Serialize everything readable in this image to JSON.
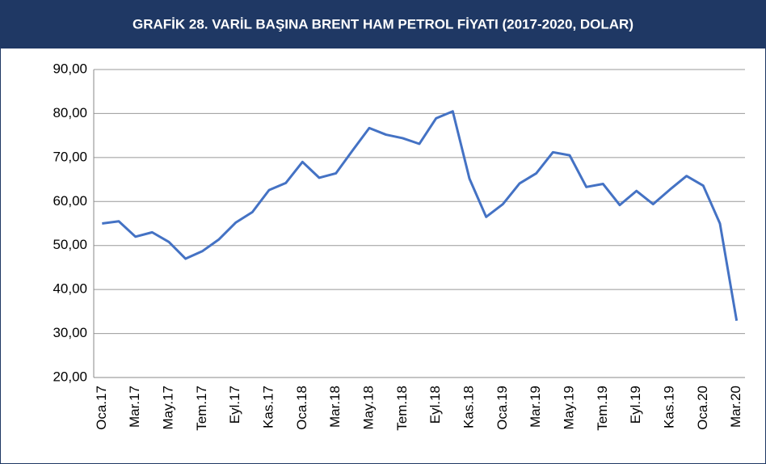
{
  "chart_data": {
    "type": "line",
    "title": "GRAFİK 28. VARİL BAŞINA BRENT HAM PETROL FİYATI (2017-2020, DOLAR)",
    "categories": [
      "Oca.17",
      null,
      "Mar.17",
      null,
      "May.17",
      null,
      "Tem.17",
      null,
      "Eyl.17",
      null,
      "Kas.17",
      null,
      "Oca.18",
      null,
      "Mar.18",
      null,
      "May.18",
      null,
      "Tem.18",
      null,
      "Eyl.18",
      null,
      "Kas.18",
      null,
      "Oca.19",
      null,
      "Mar.19",
      null,
      "May.19",
      null,
      "Tem.19",
      null,
      "Eyl.19",
      null,
      "Kas.19",
      null,
      "Oca.20",
      null,
      "Mar.20"
    ],
    "series": [
      {
        "name": "Brent",
        "color": "#4472c4",
        "values": [
          55.0,
          55.5,
          52.0,
          53.0,
          50.8,
          47.0,
          48.7,
          51.4,
          55.2,
          57.6,
          62.6,
          64.2,
          69.0,
          65.4,
          66.4,
          71.6,
          76.7,
          75.2,
          74.4,
          73.1,
          78.9,
          80.5,
          65.2,
          56.5,
          59.4,
          64.1,
          66.4,
          71.2,
          70.5,
          63.3,
          64.0,
          59.2,
          62.4,
          59.4,
          62.7,
          65.8,
          63.6,
          55.0,
          32.9
        ]
      }
    ],
    "ylim": [
      20,
      90
    ],
    "yticks": [
      {
        "value": 20,
        "label": "20,00"
      },
      {
        "value": 30,
        "label": "30,00"
      },
      {
        "value": 40,
        "label": "40,00"
      },
      {
        "value": 50,
        "label": "50,00"
      },
      {
        "value": 60,
        "label": "60,00"
      },
      {
        "value": 70,
        "label": "70,00"
      },
      {
        "value": 80,
        "label": "80,00"
      },
      {
        "value": 90,
        "label": "90,00"
      }
    ],
    "grid": true
  }
}
